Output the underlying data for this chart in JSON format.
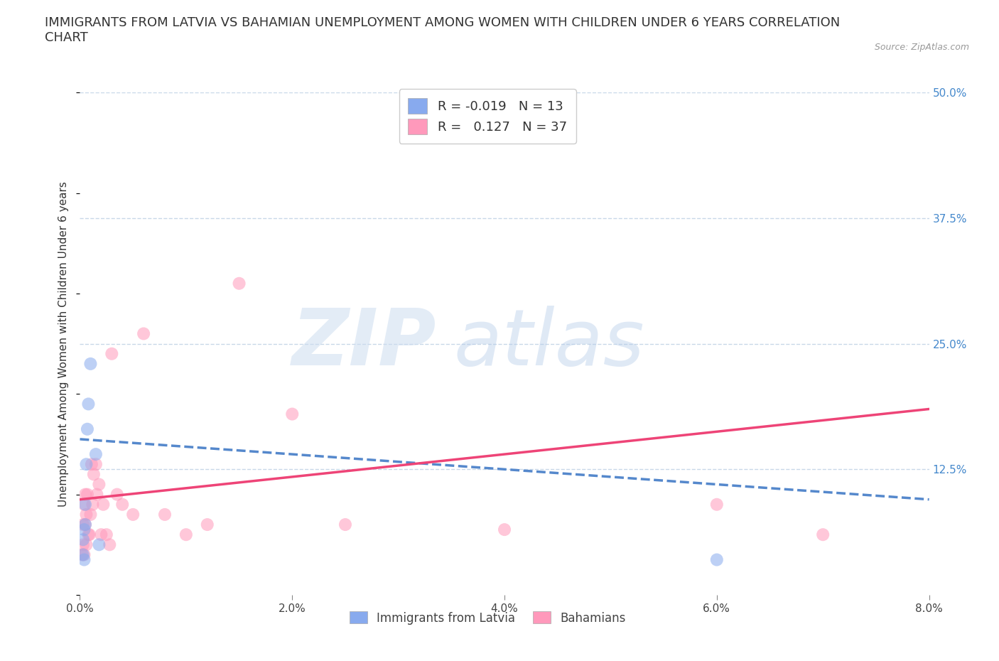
{
  "title": "IMMIGRANTS FROM LATVIA VS BAHAMIAN UNEMPLOYMENT AMONG WOMEN WITH CHILDREN UNDER 6 YEARS CORRELATION\nCHART",
  "source_text": "Source: ZipAtlas.com",
  "ylabel": "Unemployment Among Women with Children Under 6 years",
  "xlim": [
    0.0,
    0.08
  ],
  "ylim": [
    0.0,
    0.5
  ],
  "xtick_labels": [
    "0.0%",
    "2.0%",
    "4.0%",
    "6.0%",
    "8.0%"
  ],
  "xtick_vals": [
    0.0,
    0.02,
    0.04,
    0.06,
    0.08
  ],
  "ytick_labels_right": [
    "12.5%",
    "25.0%",
    "37.5%",
    "50.0%"
  ],
  "ytick_vals_right": [
    0.125,
    0.25,
    0.375,
    0.5
  ],
  "grid_color": "#c8d8e8",
  "background_color": "#ffffff",
  "legend_bottom_labels": [
    "Immigrants from Latvia",
    "Bahamians"
  ],
  "latvia_color": "#88aaee",
  "bahamian_color": "#ff99bb",
  "latvia_trend_color": "#5588cc",
  "bahamian_trend_color": "#ee4477",
  "title_fontsize": 13,
  "axis_label_fontsize": 11,
  "tick_fontsize": 11,
  "marker_size": 13,
  "marker_alpha": 0.55,
  "latvia_x": [
    0.0003,
    0.0003,
    0.0004,
    0.0004,
    0.0005,
    0.0005,
    0.0006,
    0.0007,
    0.0008,
    0.001,
    0.0015,
    0.0018,
    0.06
  ],
  "latvia_y": [
    0.04,
    0.055,
    0.035,
    0.065,
    0.07,
    0.09,
    0.13,
    0.165,
    0.19,
    0.23,
    0.14,
    0.05,
    0.035
  ],
  "bahamian_x": [
    0.0002,
    0.0003,
    0.0003,
    0.0004,
    0.0004,
    0.0005,
    0.0005,
    0.0006,
    0.0006,
    0.0007,
    0.0008,
    0.0009,
    0.001,
    0.0011,
    0.0012,
    0.0013,
    0.0015,
    0.0016,
    0.0018,
    0.002,
    0.0022,
    0.0025,
    0.0028,
    0.003,
    0.0035,
    0.004,
    0.005,
    0.006,
    0.008,
    0.01,
    0.012,
    0.015,
    0.02,
    0.025,
    0.04,
    0.06,
    0.07
  ],
  "bahamian_y": [
    0.04,
    0.05,
    0.07,
    0.04,
    0.09,
    0.07,
    0.1,
    0.05,
    0.08,
    0.1,
    0.06,
    0.06,
    0.08,
    0.13,
    0.09,
    0.12,
    0.13,
    0.1,
    0.11,
    0.06,
    0.09,
    0.06,
    0.05,
    0.24,
    0.1,
    0.09,
    0.08,
    0.26,
    0.08,
    0.06,
    0.07,
    0.31,
    0.18,
    0.07,
    0.065,
    0.09,
    0.06
  ]
}
